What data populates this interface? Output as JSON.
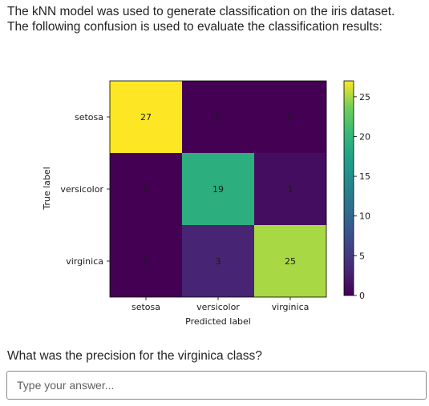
{
  "question": {
    "line1": "The kNN model was used to generate classification on the iris dataset.",
    "line2": "The following confusion is used to evaluate the classification results:",
    "prompt": "What was the precision for the virginica class?"
  },
  "answer": {
    "placeholder": "Type your answer..."
  },
  "chart_data": {
    "type": "heatmap",
    "title": "",
    "xlabel": "Predicted label",
    "ylabel": "True label",
    "x_categories": [
      "setosa",
      "versicolor",
      "virginica"
    ],
    "y_categories": [
      "setosa",
      "versicolor",
      "virginica"
    ],
    "matrix": [
      [
        27,
        0,
        0
      ],
      [
        0,
        19,
        1
      ],
      [
        0,
        3,
        25
      ]
    ],
    "colormap": "viridis",
    "colorbar": {
      "min": 0,
      "max": 27,
      "ticks": [
        0,
        5,
        10,
        15,
        20,
        25
      ]
    },
    "annotation_colors": {
      "light": "#fde725",
      "dark": "#440154"
    }
  }
}
